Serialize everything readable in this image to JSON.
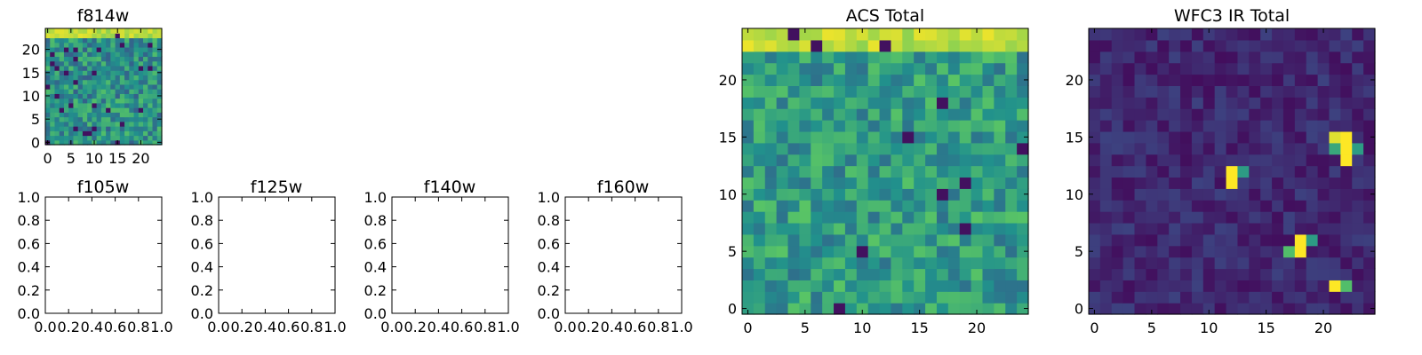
{
  "chart_data": [
    {
      "type": "heatmap",
      "title": "f814w",
      "grid_size": 25,
      "colormap": "viridis",
      "x_ticks": [
        "0",
        "5",
        "10",
        "15",
        "20"
      ],
      "y_ticks": [
        "0",
        "5",
        "10",
        "15",
        "20"
      ],
      "pattern": {
        "base": 0.5,
        "noise": 0.2,
        "top_rows_high": 0.9
      }
    },
    {
      "type": "empty",
      "title": "f105w",
      "x_ticks": [
        "0.0",
        "0.2",
        "0.4",
        "0.6",
        "0.8",
        "1.0"
      ],
      "y_ticks": [
        "0.0",
        "0.2",
        "0.4",
        "0.6",
        "0.8",
        "1.0"
      ]
    },
    {
      "type": "empty",
      "title": "f125w",
      "x_ticks": [
        "0.0",
        "0.2",
        "0.4",
        "0.6",
        "0.8",
        "1.0"
      ],
      "y_ticks": [
        "0.0",
        "0.2",
        "0.4",
        "0.6",
        "0.8",
        "1.0"
      ]
    },
    {
      "type": "empty",
      "title": "f140w",
      "x_ticks": [
        "0.0",
        "0.2",
        "0.4",
        "0.6",
        "0.8",
        "1.0"
      ],
      "y_ticks": [
        "0.0",
        "0.2",
        "0.4",
        "0.6",
        "0.8",
        "1.0"
      ]
    },
    {
      "type": "empty",
      "title": "f160w",
      "x_ticks": [
        "0.0",
        "0.2",
        "0.4",
        "0.6",
        "0.8",
        "1.0"
      ],
      "y_ticks": [
        "0.0",
        "0.2",
        "0.4",
        "0.6",
        "0.8",
        "1.0"
      ]
    },
    {
      "type": "heatmap",
      "title": "ACS Total",
      "grid_size": 25,
      "colormap": "viridis",
      "x_ticks": [
        "0",
        "5",
        "10",
        "15",
        "20"
      ],
      "y_ticks": [
        "0",
        "5",
        "10",
        "15",
        "20"
      ],
      "pattern": {
        "base": 0.55,
        "noise": 0.18,
        "top_rows_high": 0.9
      }
    },
    {
      "type": "heatmap",
      "title": "WFC3 IR Total",
      "grid_size": 25,
      "colormap": "viridis",
      "x_ticks": [
        "0",
        "5",
        "10",
        "15",
        "20"
      ],
      "y_ticks": [
        "0",
        "5",
        "10",
        "15",
        "20"
      ],
      "pattern": {
        "base": 0.12,
        "noise": 0.08
      },
      "hot_pixels": [
        {
          "x": 12,
          "y": 11,
          "v": 1.0
        },
        {
          "x": 12,
          "y": 12,
          "v": 1.0
        },
        {
          "x": 13,
          "y": 12,
          "v": 0.55
        },
        {
          "x": 18,
          "y": 5,
          "v": 1.0
        },
        {
          "x": 18,
          "y": 6,
          "v": 1.0
        },
        {
          "x": 17,
          "y": 5,
          "v": 0.7
        },
        {
          "x": 19,
          "y": 6,
          "v": 0.55
        },
        {
          "x": 21,
          "y": 15,
          "v": 0.95
        },
        {
          "x": 22,
          "y": 15,
          "v": 1.0
        },
        {
          "x": 22,
          "y": 14,
          "v": 1.0
        },
        {
          "x": 22,
          "y": 13,
          "v": 1.0
        },
        {
          "x": 23,
          "y": 14,
          "v": 0.55
        },
        {
          "x": 21,
          "y": 14,
          "v": 0.6
        },
        {
          "x": 21,
          "y": 2,
          "v": 1.0
        },
        {
          "x": 22,
          "y": 2,
          "v": 0.7
        }
      ]
    }
  ]
}
